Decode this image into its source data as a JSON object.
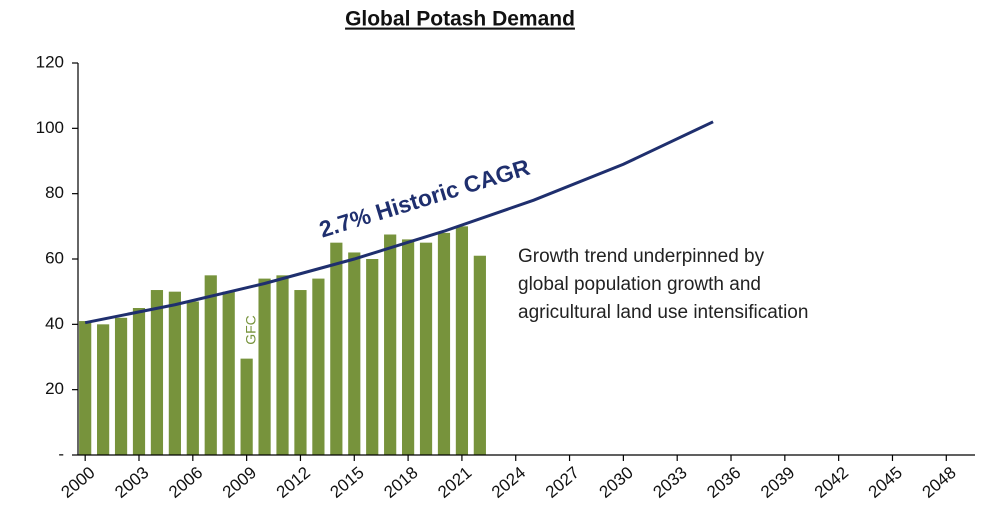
{
  "chart_data": {
    "type": "bar",
    "title": "Global Potash Demand",
    "x": [
      2000,
      2001,
      2002,
      2003,
      2004,
      2005,
      2006,
      2007,
      2008,
      2009,
      2010,
      2011,
      2012,
      2013,
      2014,
      2015,
      2016,
      2017,
      2018,
      2019,
      2020,
      2021,
      2022
    ],
    "values": [
      41,
      40,
      42,
      45,
      50.5,
      50,
      47,
      55,
      50,
      29.5,
      54,
      55,
      50.5,
      54,
      65,
      62,
      60,
      67.5,
      66,
      65,
      68,
      70,
      61
    ],
    "color": "#77933c",
    "trend": {
      "x": [
        2000,
        2005,
        2010,
        2015,
        2020,
        2025,
        2030,
        2035
      ],
      "values": [
        40.5,
        46,
        52.5,
        60,
        68.5,
        78,
        89,
        102
      ],
      "color": "#1f2f6e"
    },
    "xlim": [
      1999.6,
      2049.6
    ],
    "xticks": [
      2000,
      2003,
      2006,
      2009,
      2012,
      2015,
      2018,
      2021,
      2024,
      2027,
      2030,
      2033,
      2036,
      2039,
      2042,
      2045,
      2048
    ],
    "ylim": [
      0,
      120
    ],
    "yticks": [
      {
        "value": 0,
        "label": "-"
      },
      20,
      40,
      60,
      80,
      100,
      120
    ],
    "annotations": {
      "trend_label": "2.7% Historic CAGR",
      "event_label": "GFC",
      "note": [
        "Growth trend underpinned by",
        "global population growth and",
        "agricultural land use intensification"
      ]
    }
  }
}
